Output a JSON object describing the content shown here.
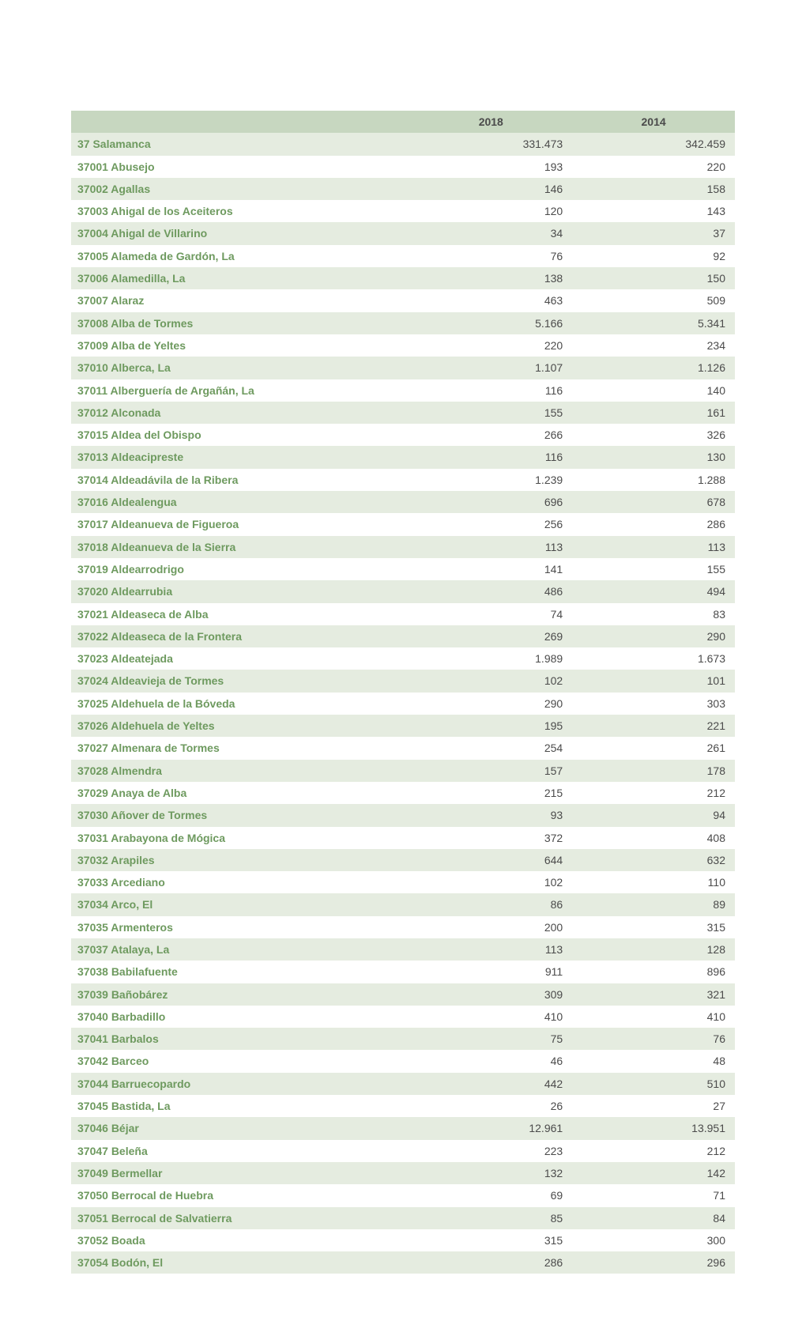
{
  "table": {
    "columns": [
      "",
      "2018",
      "2014"
    ],
    "header_bg": "#c7d7c0",
    "header_fg": "#4b4b4b",
    "row_bg_odd": "#e5ece0",
    "row_bg_even": "#ffffff",
    "label_fg": "#6e9a5f",
    "num_fg": "#4b4b4b",
    "font_size": 14,
    "rows": [
      [
        "37 Salamanca",
        "331.473",
        "342.459"
      ],
      [
        "37001 Abusejo",
        "193",
        "220"
      ],
      [
        "37002 Agallas",
        "146",
        "158"
      ],
      [
        "37003 Ahigal de los Aceiteros",
        "120",
        "143"
      ],
      [
        "37004 Ahigal de Villarino",
        "34",
        "37"
      ],
      [
        "37005 Alameda de Gardón, La",
        "76",
        "92"
      ],
      [
        "37006 Alamedilla, La",
        "138",
        "150"
      ],
      [
        "37007 Alaraz",
        "463",
        "509"
      ],
      [
        "37008 Alba de Tormes",
        "5.166",
        "5.341"
      ],
      [
        "37009 Alba de Yeltes",
        "220",
        "234"
      ],
      [
        "37010 Alberca, La",
        "1.107",
        "1.126"
      ],
      [
        "37011 Alberguería de Argañán, La",
        "116",
        "140"
      ],
      [
        "37012 Alconada",
        "155",
        "161"
      ],
      [
        "37015 Aldea del Obispo",
        "266",
        "326"
      ],
      [
        "37013 Aldeacipreste",
        "116",
        "130"
      ],
      [
        "37014 Aldeadávila de la Ribera",
        "1.239",
        "1.288"
      ],
      [
        "37016 Aldealengua",
        "696",
        "678"
      ],
      [
        "37017 Aldeanueva de Figueroa",
        "256",
        "286"
      ],
      [
        "37018 Aldeanueva de la Sierra",
        "113",
        "113"
      ],
      [
        "37019 Aldearrodrigo",
        "141",
        "155"
      ],
      [
        "37020 Aldearrubia",
        "486",
        "494"
      ],
      [
        "37021 Aldeaseca de Alba",
        "74",
        "83"
      ],
      [
        "37022 Aldeaseca de la Frontera",
        "269",
        "290"
      ],
      [
        "37023 Aldeatejada",
        "1.989",
        "1.673"
      ],
      [
        "37024 Aldeavieja de Tormes",
        "102",
        "101"
      ],
      [
        "37025 Aldehuela de la Bóveda",
        "290",
        "303"
      ],
      [
        "37026 Aldehuela de Yeltes",
        "195",
        "221"
      ],
      [
        "37027 Almenara de Tormes",
        "254",
        "261"
      ],
      [
        "37028 Almendra",
        "157",
        "178"
      ],
      [
        "37029 Anaya de Alba",
        "215",
        "212"
      ],
      [
        "37030 Añover de Tormes",
        "93",
        "94"
      ],
      [
        "37031 Arabayona de Mógica",
        "372",
        "408"
      ],
      [
        "37032 Arapiles",
        "644",
        "632"
      ],
      [
        "37033 Arcediano",
        "102",
        "110"
      ],
      [
        "37034 Arco, El",
        "86",
        "89"
      ],
      [
        "37035 Armenteros",
        "200",
        "315"
      ],
      [
        "37037 Atalaya, La",
        "113",
        "128"
      ],
      [
        "37038 Babilafuente",
        "911",
        "896"
      ],
      [
        "37039 Bañobárez",
        "309",
        "321"
      ],
      [
        "37040 Barbadillo",
        "410",
        "410"
      ],
      [
        "37041 Barbalos",
        "75",
        "76"
      ],
      [
        "37042 Barceo",
        "46",
        "48"
      ],
      [
        "37044 Barruecopardo",
        "442",
        "510"
      ],
      [
        "37045 Bastida, La",
        "26",
        "27"
      ],
      [
        "37046 Béjar",
        "12.961",
        "13.951"
      ],
      [
        "37047 Beleña",
        "223",
        "212"
      ],
      [
        "37049 Bermellar",
        "132",
        "142"
      ],
      [
        "37050 Berrocal de Huebra",
        "69",
        "71"
      ],
      [
        "37051 Berrocal de Salvatierra",
        "85",
        "84"
      ],
      [
        "37052 Boada",
        "315",
        "300"
      ],
      [
        "37054 Bodón, El",
        "286",
        "296"
      ]
    ]
  }
}
